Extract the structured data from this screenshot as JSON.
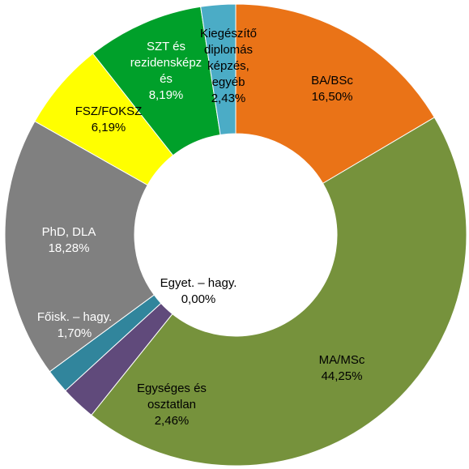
{
  "chart_data": {
    "type": "donut",
    "categories": [
      "BA/BSc",
      "MA/MSc",
      "Egységes és osztatlan",
      "Főisk. – hagy.",
      "Egyet. – hagy.",
      "PhD, DLA",
      "FSZ/FOKSZ",
      "SZT és rezidensképzés",
      "Kiegészítő diplomás képzés, egyéb"
    ],
    "values": [
      16.5,
      44.25,
      2.46,
      1.7,
      0,
      18.28,
      6.19,
      8.19,
      2.43
    ],
    "value_labels": [
      "16,50%",
      "44,25%",
      "2,46%",
      "1,70%",
      "0,00%",
      "18,28%",
      "6,19%",
      "8,19%",
      "2,43%"
    ],
    "colors": [
      "#ea7317",
      "#76923c",
      "#604a7b",
      "#31859c",
      "#c0504d",
      "#808080",
      "#ffff00",
      "#00a02a",
      "#4bacc6"
    ]
  }
}
